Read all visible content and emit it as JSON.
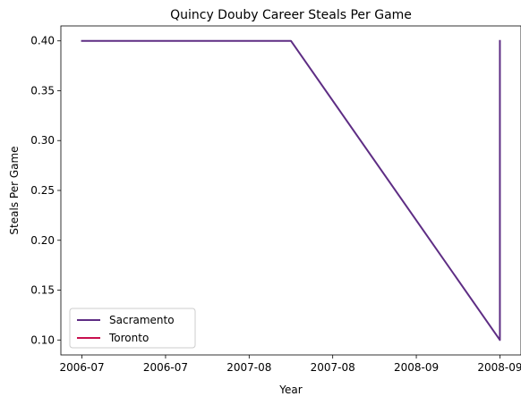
{
  "chart_data": {
    "type": "line",
    "title": "Quincy Douby Career Steals Per Game",
    "xlabel": "Year",
    "ylabel": "Steals Per Game",
    "ylim": [
      0.085,
      0.415
    ],
    "x_tick_labels": [
      "2006-07",
      "2006-07",
      "2007-08",
      "2007-08",
      "2008-09",
      "2008-09"
    ],
    "y_ticks": [
      0.1,
      0.15,
      0.2,
      0.25,
      0.3,
      0.35,
      0.4
    ],
    "y_tick_labels": [
      "0.10",
      "0.15",
      "0.20",
      "0.25",
      "0.30",
      "0.35",
      "0.40"
    ],
    "grid": false,
    "legend_position": "lower-left",
    "series": [
      {
        "name": "Sacramento",
        "color": "#5e2d84",
        "x": [
          "2006-07",
          "2007-08",
          "2008-09",
          "2008-09"
        ],
        "y": [
          0.4,
          0.4,
          0.1,
          0.4
        ]
      },
      {
        "name": "Toronto",
        "color": "#c8104e",
        "x": [
          "2008-09"
        ],
        "y": [
          0.1
        ]
      }
    ]
  }
}
